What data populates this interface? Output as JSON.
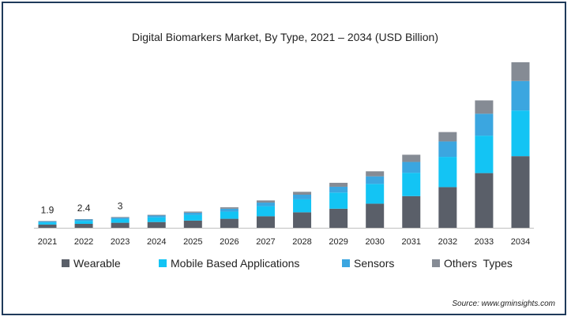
{
  "chart_data": {
    "type": "bar",
    "stacked": true,
    "title": "Digital Biomarkers Market, By Type, 2021 – 2034 (USD Billion)",
    "categories": [
      "2021",
      "2022",
      "2023",
      "2024",
      "2025",
      "2026",
      "2027",
      "2028",
      "2029",
      "2030",
      "2031",
      "2032",
      "2033",
      "2034"
    ],
    "series": [
      {
        "name": "Wearable",
        "color": "#5a5f69",
        "values": [
          0.9,
          1.1,
          1.4,
          1.6,
          2.0,
          2.5,
          3.2,
          4.3,
          5.3,
          6.7,
          8.8,
          11.3,
          15.2,
          19.9
        ]
      },
      {
        "name": "Mobile Based Applications",
        "color": "#13c4f4",
        "values": [
          0.6,
          0.8,
          1.0,
          1.3,
          1.6,
          2.0,
          2.8,
          3.6,
          4.5,
          5.5,
          6.5,
          8.4,
          10.4,
          12.7
        ]
      },
      {
        "name": "Sensors",
        "color": "#3ba6e0",
        "values": [
          0.3,
          0.4,
          0.4,
          0.5,
          0.6,
          0.8,
          1.0,
          1.3,
          1.6,
          2.1,
          3.0,
          4.3,
          6.1,
          8.2
        ]
      },
      {
        "name": "Others  Types",
        "color": "#858b94",
        "values": [
          0.1,
          0.1,
          0.2,
          0.2,
          0.3,
          0.4,
          0.6,
          0.8,
          1.1,
          1.4,
          2.0,
          2.6,
          3.7,
          5.2
        ]
      }
    ],
    "data_labels": [
      "1.9",
      "2.4",
      "3"
    ],
    "legend_position": "bottom",
    "grid": false
  },
  "source": "Source: www.gminsights.com"
}
